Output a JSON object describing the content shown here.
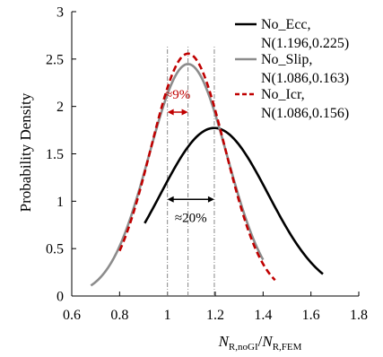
{
  "chart_data": {
    "type": "line",
    "title": "",
    "ylabel": "Probability Density",
    "xlabel": {
      "n1": "N",
      "sub1": "R,noGI",
      "slash": "/",
      "n2": "N",
      "sub2": "R,FEM"
    },
    "xlim": [
      0.6,
      1.8
    ],
    "ylim": [
      0,
      3
    ],
    "xticks": [
      0.6,
      0.8,
      1.0,
      1.2,
      1.4,
      1.6,
      1.8
    ],
    "yticks": [
      0,
      0.5,
      1,
      1.5,
      2,
      2.5,
      3
    ],
    "xtick_labels": [
      "0.6",
      "0.8",
      "1",
      "1.2",
      "1.4",
      "1.6",
      "1.8"
    ],
    "ytick_labels": [
      "0",
      "0.5",
      "1",
      "1.5",
      "2",
      "2.5",
      "3"
    ],
    "grid": false,
    "legend_position": "top-right",
    "series": [
      {
        "name": "No_Ecc,",
        "params": "N(1.196,0.225)",
        "mean": 1.196,
        "sd": 0.225,
        "x_range": [
          0.905,
          1.65
        ],
        "color": "#000000",
        "dash": "solid"
      },
      {
        "name": "No_Slip,",
        "params": "N(1.086,0.163)",
        "mean": 1.086,
        "sd": 0.163,
        "x_range": [
          0.68,
          1.4
        ],
        "color": "#8c8c8c",
        "dash": "solid"
      },
      {
        "name": "No_Icr,",
        "params": "N(1.086,0.156)",
        "mean": 1.086,
        "sd": 0.156,
        "x_range": [
          0.8,
          1.45
        ],
        "color": "#c00000",
        "dash": "dashed"
      }
    ],
    "reference_lines": [
      {
        "x": 1.0,
        "y_top": 2.65
      },
      {
        "x": 1.086,
        "y_top": 2.65
      },
      {
        "x": 1.196,
        "y_top": 2.65
      }
    ],
    "annotations": [
      {
        "text": "≈9%",
        "x_from": 1.0,
        "x_to": 1.086,
        "y": 1.94,
        "text_x": 1.043,
        "text_y": 2.08,
        "color": "#c00000"
      },
      {
        "text": "≈20%",
        "x_from": 1.0,
        "x_to": 1.196,
        "y": 1.02,
        "text_x": 1.098,
        "text_y": 0.78,
        "color": "#000000"
      }
    ]
  }
}
